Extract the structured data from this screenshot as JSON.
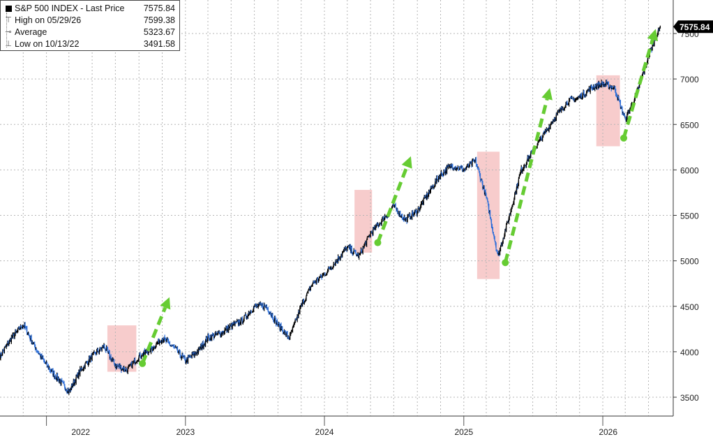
{
  "legend": {
    "items": [
      {
        "label": "S&P 500 INDEX - Last Price",
        "value": "7575.84",
        "icon": "black-square-icon"
      },
      {
        "label": "High on 05/29/26",
        "value": "7599.38",
        "icon": "high-marker-icon"
      },
      {
        "label": "Average",
        "value": "5323.67",
        "icon": "average-marker-icon"
      },
      {
        "label": "Low on 10/13/22",
        "value": "3491.58",
        "icon": "low-marker-icon"
      }
    ]
  },
  "colors": {
    "price_up": "#000000",
    "price_down": "#2e6fd8",
    "highlight": "#f7cccc",
    "arrow": "#66cc33",
    "grid": "#b5b5b5"
  },
  "chart_data": {
    "type": "line",
    "title": "",
    "xlabel": "",
    "ylabel": "",
    "x_tick_labels": [
      "2022",
      "2023",
      "2024",
      "2025",
      "2026"
    ],
    "y_ticks": [
      3500,
      4000,
      4500,
      5000,
      5500,
      6000,
      6500,
      7000,
      7500
    ],
    "y_tick_labels": [
      "3500",
      "4000",
      "4500",
      "5000",
      "5500",
      "6000",
      "6500",
      "7000",
      "7500"
    ],
    "ylim": [
      3300,
      7700
    ],
    "grid": true,
    "legend_position": "top-left",
    "last_price_label": "7575.84",
    "series": [
      {
        "name": "S&P 500 INDEX - Last Price",
        "x": [
          "2021-09-01",
          "2021-10-01",
          "2021-11-01",
          "2021-12-01",
          "2022-01-01",
          "2022-02-01",
          "2022-03-01",
          "2022-04-01",
          "2022-05-01",
          "2022-06-01",
          "2022-07-01",
          "2022-08-01",
          "2022-09-01",
          "2022-10-01",
          "2022-11-01",
          "2022-12-01",
          "2023-01-01",
          "2023-02-01",
          "2023-03-01",
          "2023-04-01",
          "2023-05-01",
          "2023-06-01",
          "2023-07-01",
          "2023-08-01",
          "2023-09-01",
          "2023-10-01",
          "2023-11-01",
          "2023-12-01",
          "2024-01-01",
          "2024-02-01",
          "2024-03-01",
          "2024-04-01",
          "2024-05-01",
          "2024-06-01",
          "2024-07-01",
          "2024-08-01",
          "2024-09-01",
          "2024-10-01",
          "2024-11-01",
          "2024-12-01",
          "2025-01-01",
          "2025-02-01",
          "2025-03-01",
          "2025-04-01",
          "2025-05-01",
          "2025-06-01",
          "2025-07-01",
          "2025-08-01",
          "2025-09-01",
          "2025-10-01",
          "2025-11-01",
          "2025-12-01",
          "2026-01-01",
          "2026-02-01",
          "2026-03-01",
          "2026-04-01",
          "2026-05-01",
          "2026-06-01"
        ],
        "values": [
          3950,
          4150,
          4300,
          4060,
          3850,
          3700,
          3560,
          3800,
          3950,
          4060,
          3850,
          3800,
          3950,
          4020,
          4150,
          4050,
          3900,
          4000,
          4150,
          4200,
          4280,
          4350,
          4500,
          4500,
          4300,
          4150,
          4500,
          4750,
          4850,
          5000,
          5150,
          5050,
          5300,
          5450,
          5600,
          5450,
          5550,
          5750,
          5950,
          6050,
          6000,
          6100,
          5700,
          5050,
          5500,
          6000,
          6200,
          6400,
          6600,
          6750,
          6800,
          6900,
          6950,
          6900,
          6550,
          6850,
          7250,
          7575
        ]
      }
    ],
    "annotations": [
      {
        "type": "highlight",
        "x_start": "2022-06-10",
        "x_end": "2022-08-25",
        "y_low": 3780,
        "y_high": 4290
      },
      {
        "type": "highlight",
        "x_start": "2024-03-20",
        "x_end": "2024-05-05",
        "y_low": 5090,
        "y_high": 5780
      },
      {
        "type": "highlight",
        "x_start": "2025-02-05",
        "x_end": "2025-04-05",
        "y_low": 4800,
        "y_high": 6200
      },
      {
        "type": "highlight",
        "x_start": "2025-12-15",
        "x_end": "2026-02-15",
        "y_low": 6260,
        "y_high": 7040
      },
      {
        "type": "arrow",
        "x_start": "2022-09-10",
        "y_start": 3870,
        "x_end": "2022-11-20",
        "y_end": 4600
      },
      {
        "type": "arrow",
        "x_start": "2024-05-20",
        "y_start": 5200,
        "x_end": "2024-08-15",
        "y_end": 6150
      },
      {
        "type": "arrow",
        "x_start": "2025-04-20",
        "y_start": 4980,
        "x_end": "2025-08-15",
        "y_end": 6900
      },
      {
        "type": "arrow",
        "x_start": "2026-02-25",
        "y_start": 6350,
        "x_end": "2026-05-20",
        "y_end": 7550
      }
    ]
  }
}
